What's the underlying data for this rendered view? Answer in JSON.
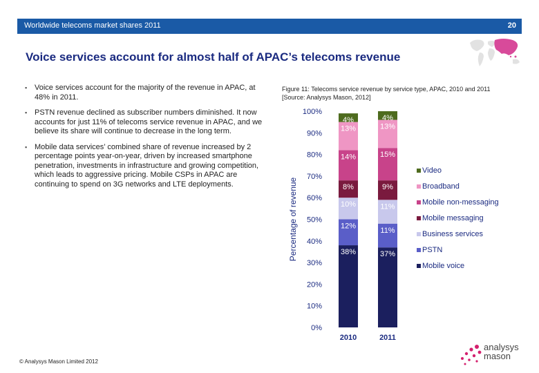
{
  "slide": {
    "header_title": "Worldwide telecoms market shares 2011",
    "page_number": "20",
    "heading": "Voice services account for almost half of APAC’s telecoms revenue",
    "bullets": [
      "Voice services account for the majority of the revenue in APAC, at 48% in 2011.",
      "PSTN revenue declined as subscriber numbers diminished. It now accounts for just 11% of telecoms service revenue in APAC, and we believe its share will continue to decrease in the long term.",
      "Mobile data services’ combined share of revenue increased by 2 percentage points year-on-year, driven by increased smartphone penetration, investments in infrastructure and growing competition, which leads to aggressive pricing. Mobile CSPs in APAC are continuing to spend on 3G networks and LTE deployments."
    ],
    "bullet_marker": "▪",
    "figure_caption_line1": "Figure 11: Telecoms service revenue by service type, APAC, 2010 and 2011",
    "figure_caption_line2": "[Source: Analysys Mason, 2012]",
    "footer": "© Analysys Mason Limited 2012",
    "logo_line1": "analysys",
    "logo_line2": "mason"
  },
  "colors": {
    "header_bar": "#1a5aa6",
    "heading": "#1a2a80"
  },
  "chart_data": {
    "type": "bar",
    "stacked": true,
    "categories": [
      "2010",
      "2011"
    ],
    "ylabel": "Percentage of revenue",
    "ylim": [
      0,
      100
    ],
    "yticks": [
      "0%",
      "10%",
      "20%",
      "30%",
      "40%",
      "50%",
      "60%",
      "70%",
      "80%",
      "90%",
      "100%"
    ],
    "legend_position": "right",
    "series": [
      {
        "name": "Mobile voice",
        "values": [
          38,
          37
        ],
        "labels": [
          "38%",
          "37%"
        ],
        "color": "#1b1f5e",
        "label_color": "#ffffff"
      },
      {
        "name": "PSTN",
        "values": [
          12,
          11
        ],
        "labels": [
          "12%",
          "11%"
        ],
        "color": "#5a5ec8",
        "label_color": "#ffffff"
      },
      {
        "name": "Business services",
        "values": [
          10,
          11
        ],
        "labels": [
          "10%",
          "11%"
        ],
        "color": "#c8c8ec",
        "label_color": "#ffffff"
      },
      {
        "name": "Mobile messaging",
        "values": [
          8,
          9
        ],
        "labels": [
          "8%",
          "9%"
        ],
        "color": "#7a1a3e",
        "label_color": "#ffffff"
      },
      {
        "name": "Mobile non-messaging",
        "values": [
          14,
          15
        ],
        "labels": [
          "14%",
          "15%"
        ],
        "color": "#c8438a",
        "label_color": "#ffffff"
      },
      {
        "name": "Broadband",
        "values": [
          13,
          13
        ],
        "labels": [
          "13%",
          "13%"
        ],
        "color": "#ef96c4",
        "label_color": "#ffffff"
      },
      {
        "name": "Video",
        "values": [
          4,
          4
        ],
        "labels": [
          "4%",
          "4%"
        ],
        "color": "#4e6b1e",
        "label_color": "#ffffff"
      }
    ]
  }
}
